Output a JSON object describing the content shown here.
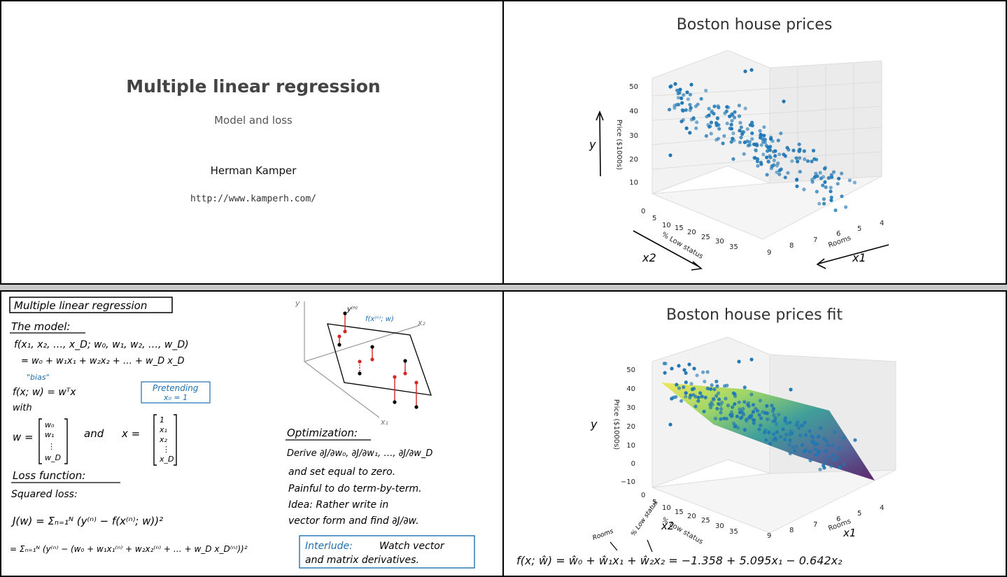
{
  "title_slide": {
    "title": "Multiple linear regression",
    "subtitle": "Model and loss",
    "author": "Herman Kamper",
    "url": "http://www.kamperh.com/"
  },
  "plot_slide": {
    "title": "Boston house prices",
    "zlabel": "Price ($1000s)",
    "xlabel": "Rooms",
    "ylabel": "% Low status",
    "z_ticks": [
      "10",
      "20",
      "30",
      "40",
      "50"
    ],
    "x_ticks": [
      "4",
      "5",
      "6",
      "7",
      "8",
      "9"
    ],
    "y_ticks": [
      "0",
      "5",
      "10",
      "15",
      "20",
      "25",
      "30",
      "35"
    ],
    "annot_y": "y",
    "annot_x1": "x1",
    "annot_x2": "x2"
  },
  "fit_slide": {
    "title": "Boston house prices fit",
    "zlabel": "Price ($1000s)",
    "xlabel": "Rooms",
    "ylabel": "% Low status",
    "z_ticks": [
      "−10",
      "0",
      "10",
      "20",
      "30",
      "40",
      "50"
    ],
    "x_ticks": [
      "4",
      "5",
      "6",
      "7",
      "8",
      "9"
    ],
    "y_ticks": [
      "0",
      "5",
      "10",
      "15",
      "20",
      "25",
      "30",
      "35"
    ],
    "annot_y": "y",
    "annot_x1": "x1",
    "annot_x2": "x2",
    "annot_rooms": "Rooms",
    "annot_lowstatus": "% Low status",
    "equation": "f(x; ŵ) = ŵ₀ + ŵ₁x₁ + ŵ₂x₂ = −1.358 + 5.095x₁ − 0.642x₂"
  },
  "notes_slide": {
    "heading": "Multiple linear regression",
    "model_heading": "The model:",
    "model_line1": "f(x₁, x₂, …, x_D; w₀, w₁, w₂, …, w_D)",
    "model_line2": "= w₀ + w₁x₁ + w₂x₂ + … + w_D x_D",
    "bias_note": "\"bias\"",
    "vector_form": "f(x; w) = wᵀx",
    "pretending": "Pretending",
    "pretending2": "x₀ = 1",
    "with": "with",
    "w_vec_label": "w =",
    "w_vec": [
      "w₀",
      "w₁",
      "⋮",
      "w_D"
    ],
    "and": "and",
    "x_vec_label": "x =",
    "x_vec": [
      "1",
      "x₁",
      "x₂",
      "⋮",
      "x_D"
    ],
    "loss_heading": "Loss function:",
    "squared_loss": "Squared loss:",
    "loss_eq1": "J(w) = Σₙ₌₁ᴺ (y⁽ⁿ⁾ − f(x⁽ⁿ⁾; w))²",
    "loss_eq2": "= Σₙ₌₁ᴺ (y⁽ⁿ⁾ − (w₀ + w₁x₁⁽ⁿ⁾ + w₂x₂⁽ⁿ⁾ + … + w_D x_D⁽ⁿ⁾))²",
    "diagram_y": "y",
    "diagram_yn": "y⁽ⁿ⁾",
    "diagram_f": "f(x⁽ⁿ⁾; w)",
    "diagram_x2": "x₂",
    "diagram_x1": "x₁",
    "opt_heading": "Optimization:",
    "opt_line1": "Derive ∂J/∂w₀, ∂J/∂w₁, …, ∂J/∂w_D",
    "opt_line2": "and set equal to zero.",
    "opt_line3": "Painful to do term-by-term.",
    "opt_line4": "Idea: Rather write in",
    "opt_line5": "vector form and find ∂J/∂w.",
    "interlude_label": "Interlude:",
    "interlude_text1": "Watch vector",
    "interlude_text2": "and matrix derivatives."
  },
  "colors": {
    "points": "#1f77b4",
    "ink": "#000000",
    "blue_ink": "#1f6fb0",
    "red_ink": "#d62728",
    "plane_start": "#f0e442",
    "plane_mid": "#21918c",
    "plane_end": "#440154"
  }
}
